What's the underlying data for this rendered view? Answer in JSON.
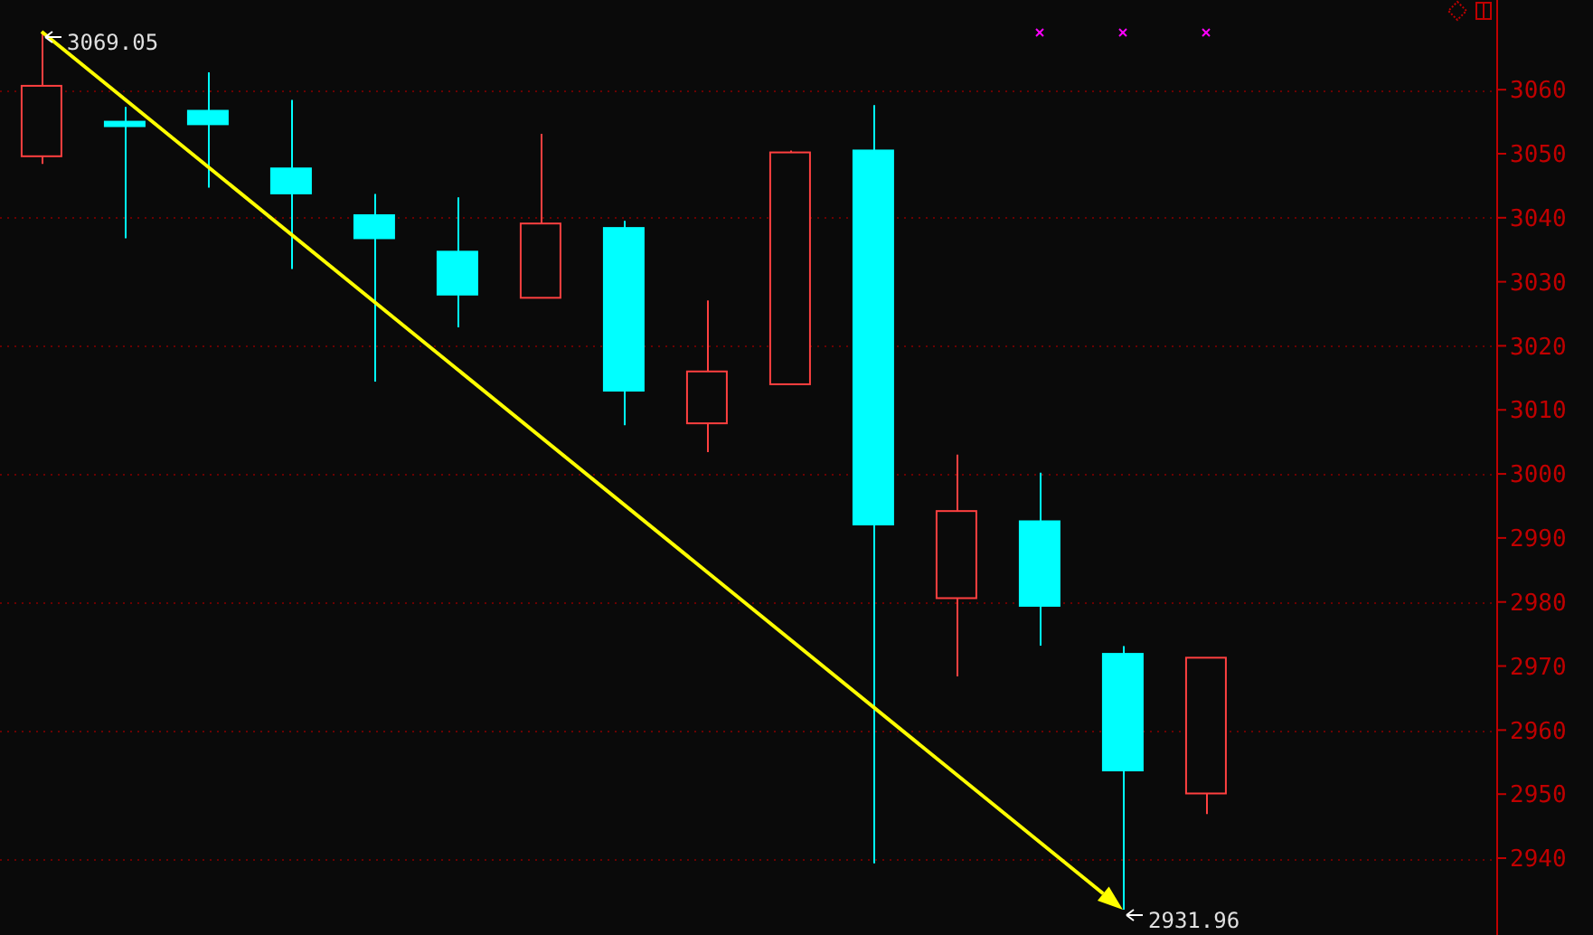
{
  "chart_data": {
    "type": "candlestick",
    "categories": [
      null,
      null,
      null,
      null,
      null,
      null,
      null,
      null,
      null,
      null,
      null,
      null,
      null,
      null,
      null,
      null,
      null,
      null
    ],
    "ohlc": [
      [
        3049.6,
        3069.05,
        3048.4,
        3060.6
      ],
      [
        3055.0,
        3057.3,
        3036.8,
        3054.3
      ],
      [
        3056.7,
        3062.7,
        3044.7,
        3054.6
      ],
      [
        3047.7,
        3058.4,
        3032.0,
        3043.8
      ],
      [
        3040.4,
        3043.7,
        3014.4,
        3036.8
      ],
      [
        3034.7,
        3043.2,
        3022.9,
        3028.0
      ],
      [
        3027.5,
        3053.1,
        3027.5,
        3039.1
      ],
      [
        3038.4,
        3039.5,
        3007.6,
        3013.0
      ],
      [
        3007.9,
        3027.1,
        3003.4,
        3016.0
      ],
      [
        3014.0,
        3050.5,
        3014.0,
        3050.2
      ],
      [
        3050.5,
        3057.6,
        2939.2,
        2992.1
      ],
      [
        2980.6,
        3003.0,
        2968.4,
        2994.2
      ],
      [
        2992.6,
        3000.2,
        2973.2,
        2979.4
      ],
      [
        2971.9,
        2973.1,
        2931.96,
        2953.7
      ],
      [
        2950.1,
        2971.3,
        2946.9,
        2971.3
      ],
      null,
      null,
      null
    ],
    "ylim": [
      2928,
      3074
    ],
    "yticks": [
      2940,
      2950,
      2960,
      2970,
      2980,
      2990,
      3000,
      3010,
      3020,
      3030,
      3040,
      3050,
      3060
    ],
    "grid": "y",
    "annotations": [
      "3069.05",
      "2931.96"
    ]
  }
}
